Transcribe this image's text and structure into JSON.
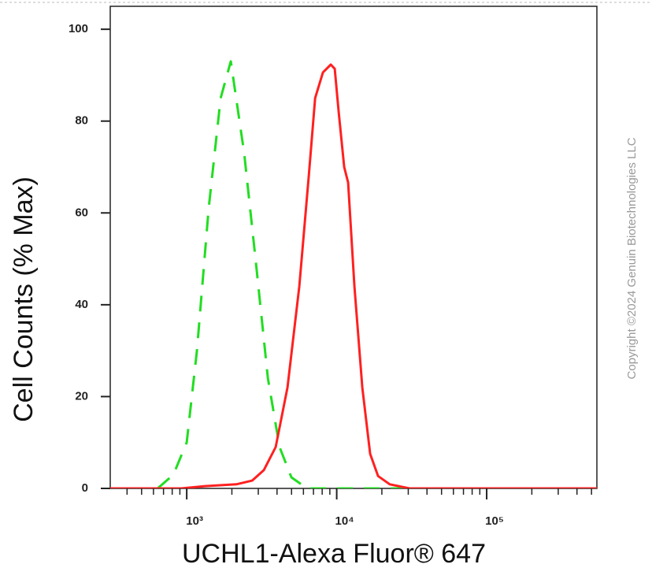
{
  "chart_data": {
    "type": "line",
    "xlabel": "UCHL1-Alexa Fluor® 647",
    "ylabel": "Cell Counts (% Max)",
    "copyright": "Copyright ©2024 Genuin Biotechnologies LLC",
    "xscale": "log",
    "xlim": [
      309,
      543000
    ],
    "ylim": [
      0,
      105
    ],
    "xticks": [
      {
        "value": 1000,
        "label": "10³"
      },
      {
        "value": 10000,
        "label": "10⁴"
      },
      {
        "value": 100000,
        "label": "10⁵"
      }
    ],
    "xminorticks": [
      400,
      500,
      600,
      700,
      800,
      900,
      2000,
      3000,
      4000,
      5000,
      6000,
      7000,
      8000,
      9000,
      20000,
      30000,
      40000,
      50000,
      60000,
      70000,
      80000,
      90000,
      200000,
      300000,
      400000,
      500000
    ],
    "yticks": [
      0,
      20,
      40,
      60,
      80,
      100
    ],
    "series": [
      {
        "color": "#22dd22",
        "linestyle": "dashed",
        "x": [
          640,
          815,
          1000,
          1170,
          1400,
          1683,
          1967,
          2416,
          2897,
          3475,
          4159,
          4989,
          6353,
          9140,
          543000
        ],
        "values": [
          0,
          3,
          10,
          30,
          61,
          85,
          93,
          73,
          49,
          24,
          9,
          2.4,
          0,
          0,
          0
        ]
      },
      {
        "color": "#ff2020",
        "linestyle": "solid",
        "x": [
          309,
          919,
          1321,
          2143,
          2729,
          3268,
          3918,
          4697,
          5632,
          6514,
          7178,
          8098,
          9137,
          9706,
          10310,
          11220,
          11920,
          13130,
          14820,
          16720,
          18870,
          22600,
          30600,
          80500,
          543000
        ],
        "values": [
          0,
          0,
          0.5,
          0.9,
          1.7,
          4,
          9,
          22,
          44,
          68,
          85,
          90.6,
          92.3,
          91.4,
          82,
          70,
          66.6,
          44,
          22,
          7.5,
          2.7,
          0.9,
          0,
          0,
          0
        ]
      }
    ]
  }
}
